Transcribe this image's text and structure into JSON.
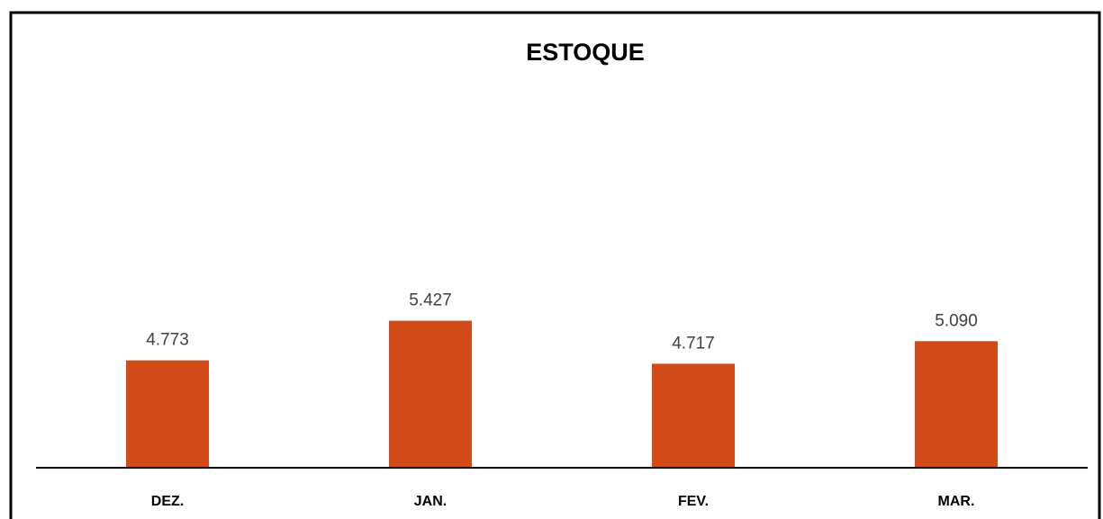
{
  "chart_data": {
    "type": "bar",
    "title": "ESTOQUE",
    "categories": [
      "DEZ.",
      "JAN.",
      "FEV.",
      "MAR."
    ],
    "values": [
      4773,
      5427,
      4717,
      5090
    ],
    "value_labels": [
      "4.773",
      "5.427",
      "4.717",
      "5.090"
    ],
    "color": "#d24a17",
    "ylim": [
      3000,
      9000
    ]
  }
}
